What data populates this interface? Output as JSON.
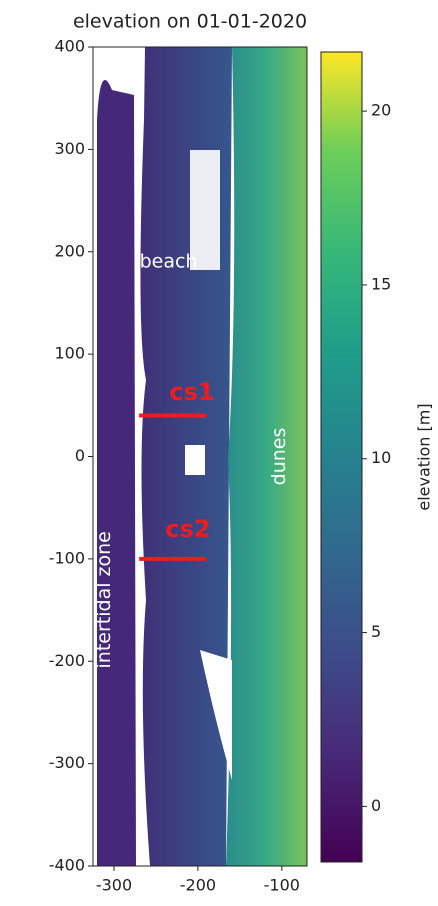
{
  "chart_data": {
    "type": "image",
    "title": "elevation on 01-01-2020",
    "xlim": [
      -325,
      -70
    ],
    "ylim": [
      -400,
      400
    ],
    "xticks": [
      -300,
      -200,
      -100
    ],
    "yticks": [
      -400,
      -300,
      -200,
      -100,
      0,
      100,
      200,
      300,
      400
    ],
    "colorbar": {
      "label": "elevation [m]",
      "lim": [
        -1.6,
        21.7
      ],
      "ticks": [
        0,
        5,
        10,
        15,
        20
      ],
      "colormap": "viridis"
    },
    "lines": [
      {
        "name": "cs1",
        "x": [
          -270,
          -190
        ],
        "y": [
          40,
          40
        ],
        "color": "#ee1c1c"
      },
      {
        "name": "cs2",
        "x": [
          -270,
          -190
        ],
        "y": [
          -100,
          -100
        ],
        "color": "#ee1c1c"
      }
    ],
    "line_labels": [
      {
        "x": -207,
        "y": 62
      },
      {
        "x": -212,
        "y": -72
      }
    ],
    "annotations": [
      {
        "text": "beach",
        "x": -235,
        "y": 190,
        "rotation": 0,
        "color": "#ffffff"
      },
      {
        "text": "dunes",
        "x": -103,
        "y": 0,
        "rotation": -90,
        "color": "#ffffff"
      },
      {
        "text": "intertidal zone",
        "x": -311,
        "y": -140,
        "rotation": -90,
        "color": "#ffffff"
      }
    ]
  }
}
